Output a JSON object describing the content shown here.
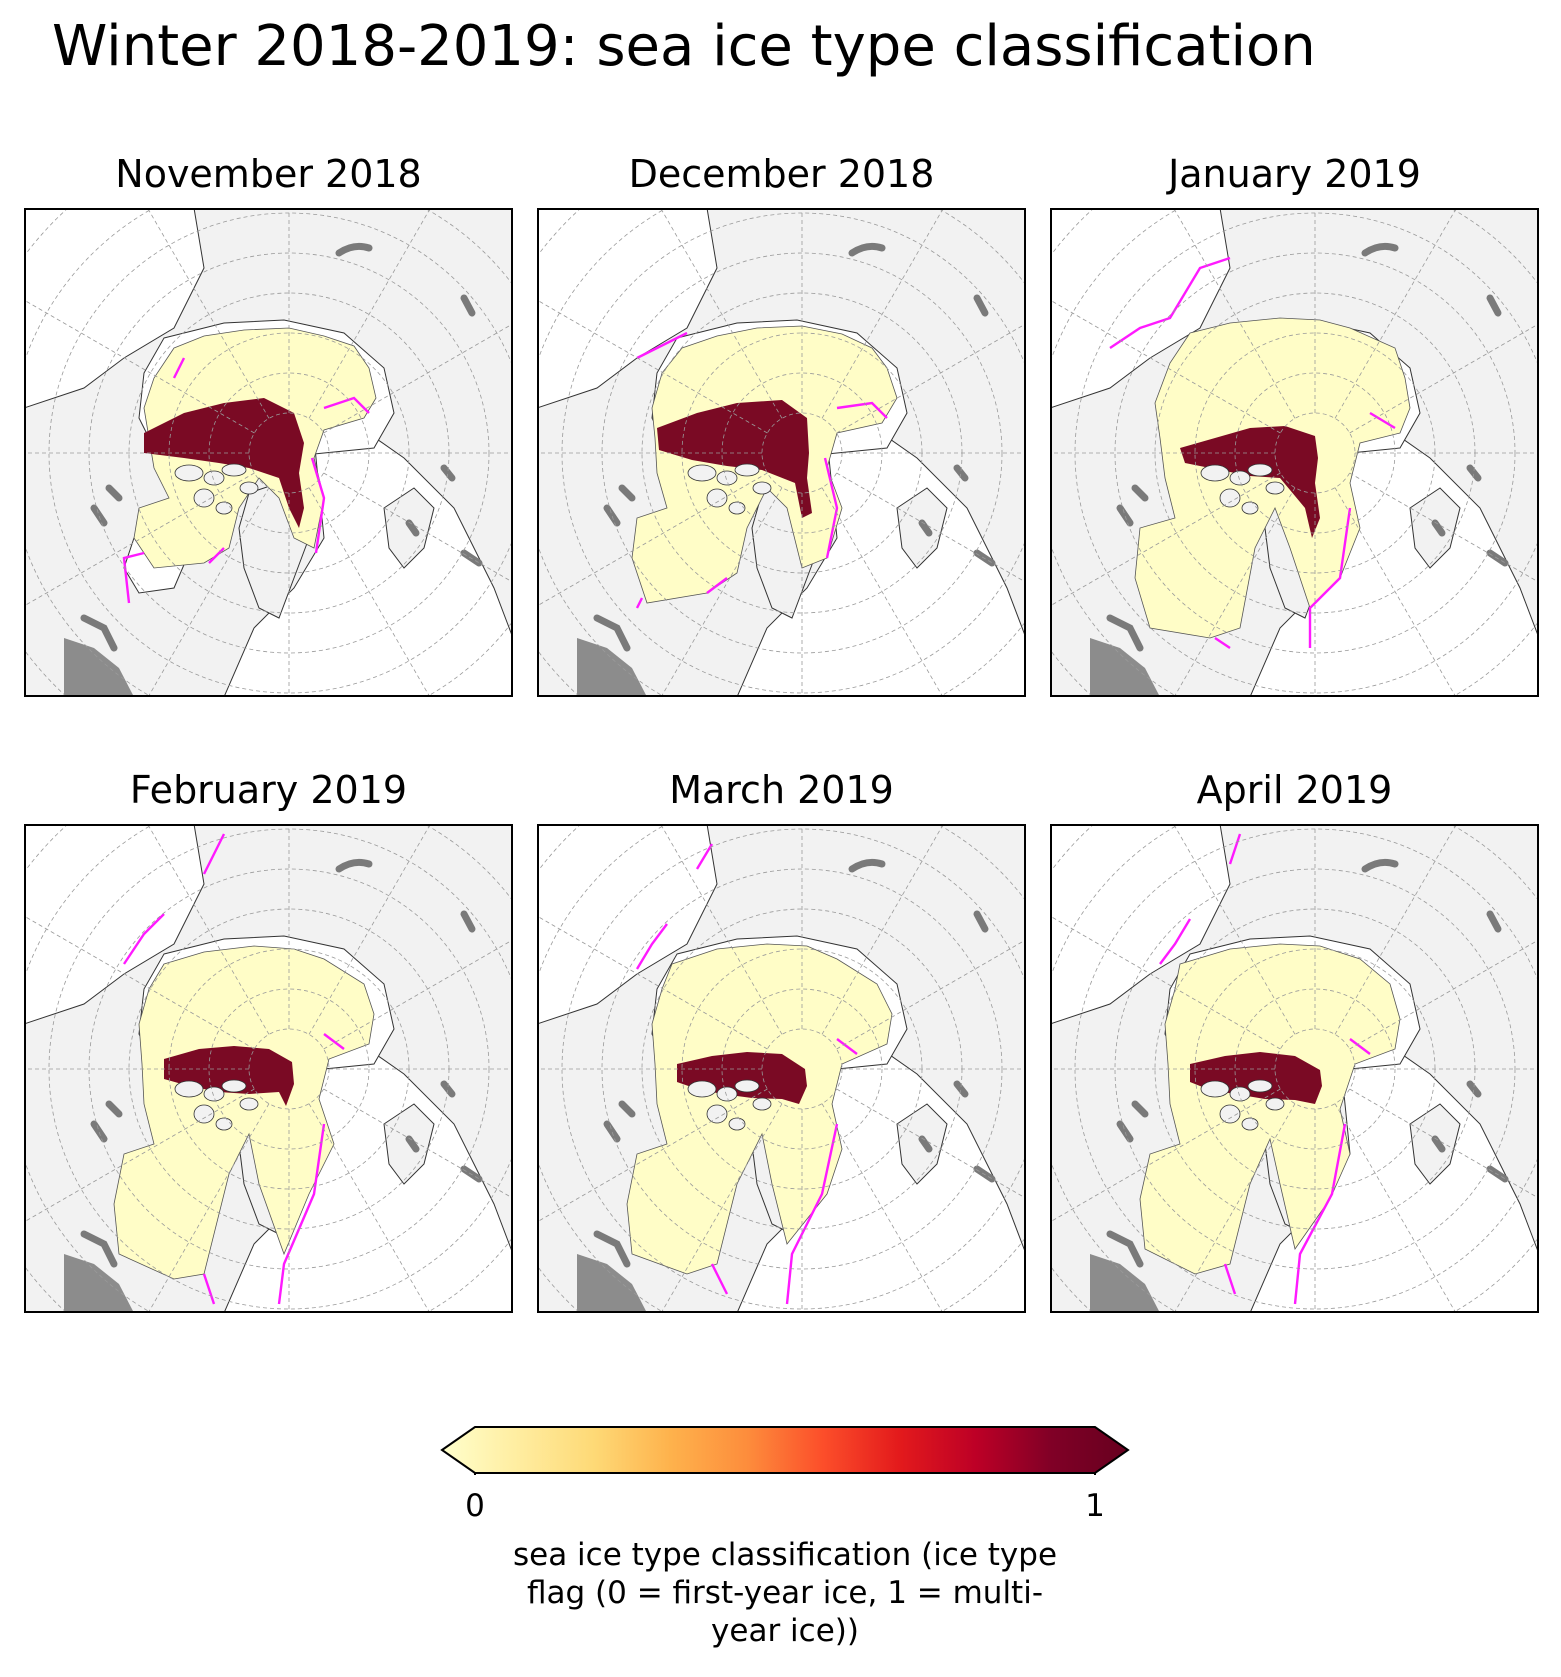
{
  "title": "Winter 2018-2019: sea ice type classification",
  "panels": [
    {
      "label": "November 2018"
    },
    {
      "label": "December 2018"
    },
    {
      "label": "January 2019"
    },
    {
      "label": "February 2019"
    },
    {
      "label": "March 2019"
    },
    {
      "label": "April 2019"
    }
  ],
  "colorbar": {
    "label": "sea ice type classification (ice type flag (0 = first-year ice, 1 = multi-year ice))",
    "label_lines": [
      "sea ice type classification (ice type",
      "flag (0 = first-year ice, 1 = multi-",
      "year ice))"
    ],
    "min_label": "0",
    "max_label": "1",
    "colormap": "YlOrRd",
    "colors": [
      "#ffffcc",
      "#ffeda0",
      "#fed976",
      "#feb24c",
      "#fd8d3c",
      "#fc4e2a",
      "#e31a1c",
      "#bd0026",
      "#800026",
      "#67001f"
    ],
    "extend": "both"
  },
  "colors": {
    "first_year_ice": "#fffdc7",
    "multi_year_ice": "#7a0a24",
    "ice_edge": "#ff1aff",
    "land": "#f2f2f2",
    "lakes": "#7a7a7a",
    "ocean": "#ffffff",
    "gridlines": "#9a9a9a"
  }
}
